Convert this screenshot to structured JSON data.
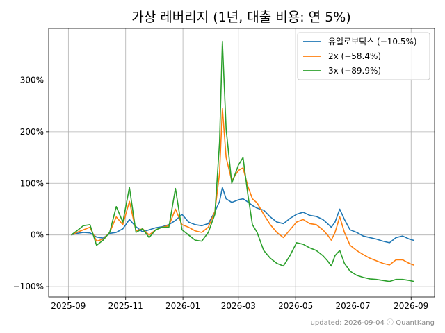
{
  "chart_data": {
    "type": "line",
    "title": "가상 레버리지 (1년, 대출 비용: 연 5%)",
    "xlabel": "",
    "ylabel": "",
    "x_tick_labels": [
      "2025-09",
      "2025-11",
      "2026-01",
      "2026-03",
      "2026-05",
      "2026-07",
      "2026-09"
    ],
    "x_tick_dates": [
      "2025-09-01",
      "2025-11-01",
      "2026-01-01",
      "2026-03-01",
      "2026-05-01",
      "2026-07-01",
      "2026-09-01"
    ],
    "xlim": [
      "2025-08-11",
      "2026-09-26"
    ],
    "y_tick_labels": [
      "−100%",
      "0%",
      "100%",
      "200%",
      "300%"
    ],
    "y_tick_values": [
      -100,
      0,
      100,
      200,
      300
    ],
    "ylim": [
      -120,
      400
    ],
    "y_unit": "%",
    "grid": true,
    "legend_position": "top-right",
    "footer": "updated: 2026-09-04 ⓒ QuantKang",
    "series": [
      {
        "name": "유일로보틱스 (−10.5%)",
        "color": "#1f77b4",
        "points": [
          [
            "2025-09-04",
            0
          ],
          [
            "2025-09-10",
            3
          ],
          [
            "2025-09-17",
            5
          ],
          [
            "2025-09-24",
            4
          ],
          [
            "2025-10-01",
            -4
          ],
          [
            "2025-10-08",
            -6
          ],
          [
            "2025-10-15",
            3
          ],
          [
            "2025-10-22",
            5
          ],
          [
            "2025-10-29",
            12
          ],
          [
            "2025-11-05",
            30
          ],
          [
            "2025-11-12",
            16
          ],
          [
            "2025-11-19",
            6
          ],
          [
            "2025-11-26",
            10
          ],
          [
            "2025-12-03",
            14
          ],
          [
            "2025-12-10",
            16
          ],
          [
            "2025-12-17",
            20
          ],
          [
            "2025-12-24",
            28
          ],
          [
            "2025-12-31",
            40
          ],
          [
            "2026-01-07",
            25
          ],
          [
            "2026-01-14",
            20
          ],
          [
            "2026-01-21",
            18
          ],
          [
            "2026-01-28",
            22
          ],
          [
            "2026-02-04",
            45
          ],
          [
            "2026-02-09",
            65
          ],
          [
            "2026-02-12",
            92
          ],
          [
            "2026-02-16",
            70
          ],
          [
            "2026-02-22",
            63
          ],
          [
            "2026-03-01",
            68
          ],
          [
            "2026-03-06",
            70
          ],
          [
            "2026-03-11",
            64
          ],
          [
            "2026-03-16",
            57
          ],
          [
            "2026-03-21",
            52
          ],
          [
            "2026-03-28",
            48
          ],
          [
            "2026-04-04",
            35
          ],
          [
            "2026-04-11",
            25
          ],
          [
            "2026-04-18",
            22
          ],
          [
            "2026-04-25",
            32
          ],
          [
            "2026-05-02",
            40
          ],
          [
            "2026-05-09",
            44
          ],
          [
            "2026-05-16",
            38
          ],
          [
            "2026-05-23",
            36
          ],
          [
            "2026-05-30",
            30
          ],
          [
            "2026-06-04",
            22
          ],
          [
            "2026-06-08",
            15
          ],
          [
            "2026-06-12",
            25
          ],
          [
            "2026-06-17",
            50
          ],
          [
            "2026-06-22",
            30
          ],
          [
            "2026-06-28",
            10
          ],
          [
            "2026-07-05",
            5
          ],
          [
            "2026-07-12",
            -2
          ],
          [
            "2026-07-19",
            -5
          ],
          [
            "2026-07-26",
            -8
          ],
          [
            "2026-08-02",
            -12
          ],
          [
            "2026-08-09",
            -15
          ],
          [
            "2026-08-16",
            -5
          ],
          [
            "2026-08-23",
            -2
          ],
          [
            "2026-08-30",
            -8
          ],
          [
            "2026-09-04",
            -10.5
          ]
        ]
      },
      {
        "name": "2x (−58.4%)",
        "color": "#ff7f0e",
        "points": [
          [
            "2025-09-04",
            0
          ],
          [
            "2025-09-10",
            5
          ],
          [
            "2025-09-17",
            10
          ],
          [
            "2025-09-24",
            15
          ],
          [
            "2025-10-01",
            -12
          ],
          [
            "2025-10-08",
            -8
          ],
          [
            "2025-10-15",
            5
          ],
          [
            "2025-10-22",
            35
          ],
          [
            "2025-10-29",
            20
          ],
          [
            "2025-11-05",
            65
          ],
          [
            "2025-11-12",
            8
          ],
          [
            "2025-11-19",
            12
          ],
          [
            "2025-11-26",
            0
          ],
          [
            "2025-12-03",
            10
          ],
          [
            "2025-12-10",
            15
          ],
          [
            "2025-12-17",
            18
          ],
          [
            "2025-12-24",
            50
          ],
          [
            "2025-12-31",
            20
          ],
          [
            "2026-01-07",
            15
          ],
          [
            "2026-01-14",
            8
          ],
          [
            "2026-01-21",
            5
          ],
          [
            "2026-01-28",
            15
          ],
          [
            "2026-02-04",
            45
          ],
          [
            "2026-02-09",
            120
          ],
          [
            "2026-02-12",
            245
          ],
          [
            "2026-02-16",
            150
          ],
          [
            "2026-02-22",
            105
          ],
          [
            "2026-03-01",
            125
          ],
          [
            "2026-03-06",
            130
          ],
          [
            "2026-03-11",
            95
          ],
          [
            "2026-03-16",
            70
          ],
          [
            "2026-03-21",
            62
          ],
          [
            "2026-03-28",
            40
          ],
          [
            "2026-04-04",
            20
          ],
          [
            "2026-04-11",
            5
          ],
          [
            "2026-04-18",
            -5
          ],
          [
            "2026-04-25",
            10
          ],
          [
            "2026-05-02",
            25
          ],
          [
            "2026-05-09",
            30
          ],
          [
            "2026-05-16",
            22
          ],
          [
            "2026-05-23",
            20
          ],
          [
            "2026-05-30",
            10
          ],
          [
            "2026-06-04",
            0
          ],
          [
            "2026-06-08",
            -10
          ],
          [
            "2026-06-12",
            5
          ],
          [
            "2026-06-17",
            35
          ],
          [
            "2026-06-22",
            5
          ],
          [
            "2026-06-28",
            -20
          ],
          [
            "2026-07-05",
            -30
          ],
          [
            "2026-07-12",
            -38
          ],
          [
            "2026-07-19",
            -45
          ],
          [
            "2026-07-26",
            -50
          ],
          [
            "2026-08-02",
            -55
          ],
          [
            "2026-08-09",
            -58
          ],
          [
            "2026-08-16",
            -48
          ],
          [
            "2026-08-23",
            -48
          ],
          [
            "2026-08-30",
            -55
          ],
          [
            "2026-09-04",
            -58.4
          ]
        ]
      },
      {
        "name": "3x (−89.9%)",
        "color": "#2ca02c",
        "points": [
          [
            "2025-09-04",
            0
          ],
          [
            "2025-09-10",
            8
          ],
          [
            "2025-09-17",
            18
          ],
          [
            "2025-09-24",
            20
          ],
          [
            "2025-10-01",
            -20
          ],
          [
            "2025-10-08",
            -10
          ],
          [
            "2025-10-15",
            5
          ],
          [
            "2025-10-22",
            55
          ],
          [
            "2025-10-29",
            25
          ],
          [
            "2025-11-05",
            92
          ],
          [
            "2025-11-12",
            5
          ],
          [
            "2025-11-19",
            12
          ],
          [
            "2025-11-26",
            -5
          ],
          [
            "2025-12-03",
            10
          ],
          [
            "2025-12-10",
            15
          ],
          [
            "2025-12-17",
            15
          ],
          [
            "2025-12-24",
            90
          ],
          [
            "2025-12-31",
            10
          ],
          [
            "2026-01-07",
            0
          ],
          [
            "2026-01-14",
            -10
          ],
          [
            "2026-01-21",
            -12
          ],
          [
            "2026-01-28",
            5
          ],
          [
            "2026-02-04",
            40
          ],
          [
            "2026-02-09",
            180
          ],
          [
            "2026-02-12",
            375
          ],
          [
            "2026-02-16",
            205
          ],
          [
            "2026-02-22",
            100
          ],
          [
            "2026-03-01",
            135
          ],
          [
            "2026-03-06",
            150
          ],
          [
            "2026-03-11",
            80
          ],
          [
            "2026-03-16",
            20
          ],
          [
            "2026-03-21",
            5
          ],
          [
            "2026-03-28",
            -30
          ],
          [
            "2026-04-04",
            -45
          ],
          [
            "2026-04-11",
            -55
          ],
          [
            "2026-04-18",
            -60
          ],
          [
            "2026-04-25",
            -40
          ],
          [
            "2026-05-02",
            -15
          ],
          [
            "2026-05-09",
            -18
          ],
          [
            "2026-05-16",
            -25
          ],
          [
            "2026-05-23",
            -30
          ],
          [
            "2026-05-30",
            -40
          ],
          [
            "2026-06-04",
            -50
          ],
          [
            "2026-06-08",
            -60
          ],
          [
            "2026-06-12",
            -40
          ],
          [
            "2026-06-17",
            -30
          ],
          [
            "2026-06-22",
            -55
          ],
          [
            "2026-06-28",
            -70
          ],
          [
            "2026-07-05",
            -78
          ],
          [
            "2026-07-12",
            -82
          ],
          [
            "2026-07-19",
            -85
          ],
          [
            "2026-07-26",
            -86
          ],
          [
            "2026-08-02",
            -88
          ],
          [
            "2026-08-09",
            -90
          ],
          [
            "2026-08-16",
            -86
          ],
          [
            "2026-08-23",
            -86
          ],
          [
            "2026-08-30",
            -88
          ],
          [
            "2026-09-04",
            -89.9
          ]
        ]
      }
    ]
  }
}
